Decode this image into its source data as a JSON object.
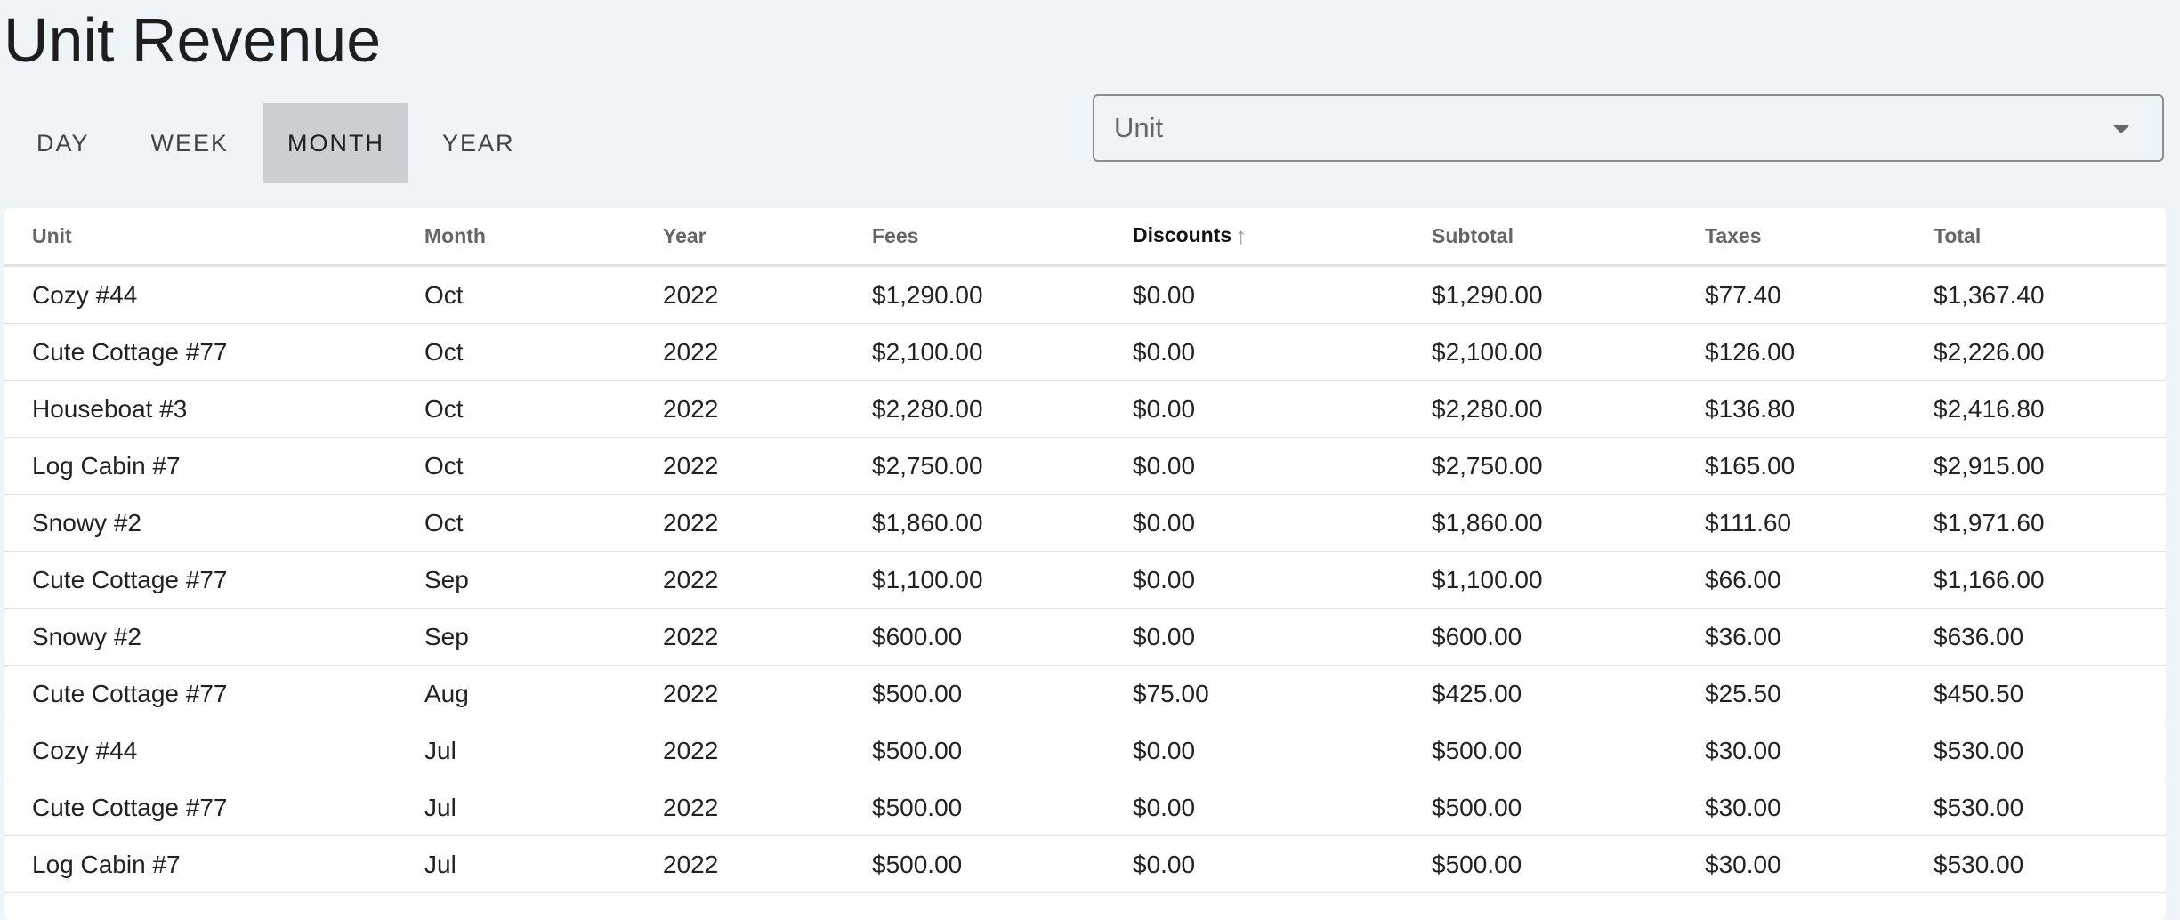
{
  "page": {
    "title": "Unit Revenue"
  },
  "tabs": [
    {
      "label": "DAY",
      "active": false
    },
    {
      "label": "WEEK",
      "active": false
    },
    {
      "label": "MONTH",
      "active": true
    },
    {
      "label": "YEAR",
      "active": false
    }
  ],
  "unit_select": {
    "placeholder": "Unit",
    "icon": "caret-down-icon"
  },
  "table": {
    "columns": [
      "Unit",
      "Month",
      "Year",
      "Fees",
      "Discounts",
      "Subtotal",
      "Taxes",
      "Total"
    ],
    "sorted_column": "Discounts",
    "sort_direction": "ascending",
    "rows": [
      [
        "Cozy #44",
        "Oct",
        "2022",
        "$1,290.00",
        "$0.00",
        "$1,290.00",
        "$77.40",
        "$1,367.40"
      ],
      [
        "Cute Cottage #77",
        "Oct",
        "2022",
        "$2,100.00",
        "$0.00",
        "$2,100.00",
        "$126.00",
        "$2,226.00"
      ],
      [
        "Houseboat #3",
        "Oct",
        "2022",
        "$2,280.00",
        "$0.00",
        "$2,280.00",
        "$136.80",
        "$2,416.80"
      ],
      [
        "Log Cabin #7",
        "Oct",
        "2022",
        "$2,750.00",
        "$0.00",
        "$2,750.00",
        "$165.00",
        "$2,915.00"
      ],
      [
        "Snowy #2",
        "Oct",
        "2022",
        "$1,860.00",
        "$0.00",
        "$1,860.00",
        "$111.60",
        "$1,971.60"
      ],
      [
        "Cute Cottage #77",
        "Sep",
        "2022",
        "$1,100.00",
        "$0.00",
        "$1,100.00",
        "$66.00",
        "$1,166.00"
      ],
      [
        "Snowy #2",
        "Sep",
        "2022",
        "$600.00",
        "$0.00",
        "$600.00",
        "$36.00",
        "$636.00"
      ],
      [
        "Cute Cottage #77",
        "Aug",
        "2022",
        "$500.00",
        "$75.00",
        "$425.00",
        "$25.50",
        "$450.50"
      ],
      [
        "Cozy #44",
        "Jul",
        "2022",
        "$500.00",
        "$0.00",
        "$500.00",
        "$30.00",
        "$530.00"
      ],
      [
        "Cute Cottage #77",
        "Jul",
        "2022",
        "$500.00",
        "$0.00",
        "$500.00",
        "$30.00",
        "$530.00"
      ],
      [
        "Log Cabin #7",
        "Jul",
        "2022",
        "$500.00",
        "$0.00",
        "$500.00",
        "$30.00",
        "$530.00"
      ]
    ]
  },
  "colors": {
    "background": "#eff4f8",
    "active_tab": "#cbcfd2"
  }
}
